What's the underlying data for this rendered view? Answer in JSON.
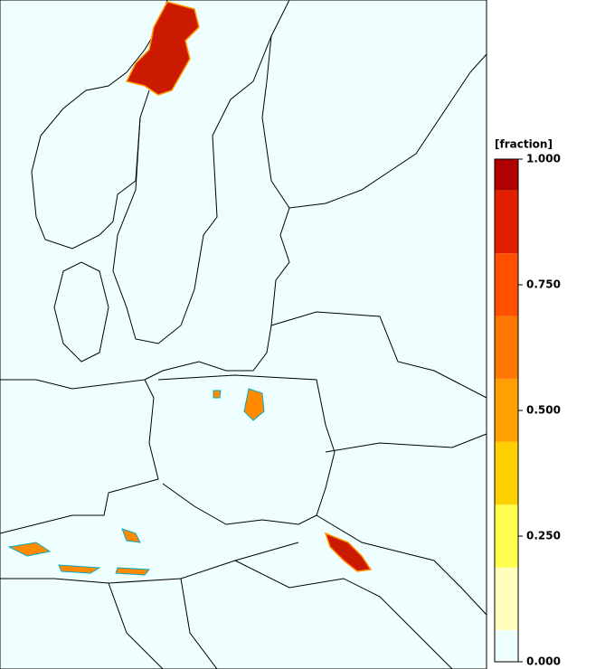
{
  "colorbar": {
    "label": "[fraction]",
    "lim": [
      0,
      1
    ],
    "ticks": [
      {
        "value": 0,
        "label": "0.000"
      },
      {
        "value": 0.25,
        "label": "0.250"
      },
      {
        "value": 0.5,
        "label": "0.500"
      },
      {
        "value": 0.75,
        "label": "0.750"
      },
      {
        "value": 1,
        "label": "1.000"
      }
    ],
    "colors": [
      "#eeffff",
      "#ffffc0",
      "#ffff50",
      "#ffd000",
      "#ffa000",
      "#ff7800",
      "#ff5000",
      "#e02000",
      "#b00000"
    ]
  }
}
